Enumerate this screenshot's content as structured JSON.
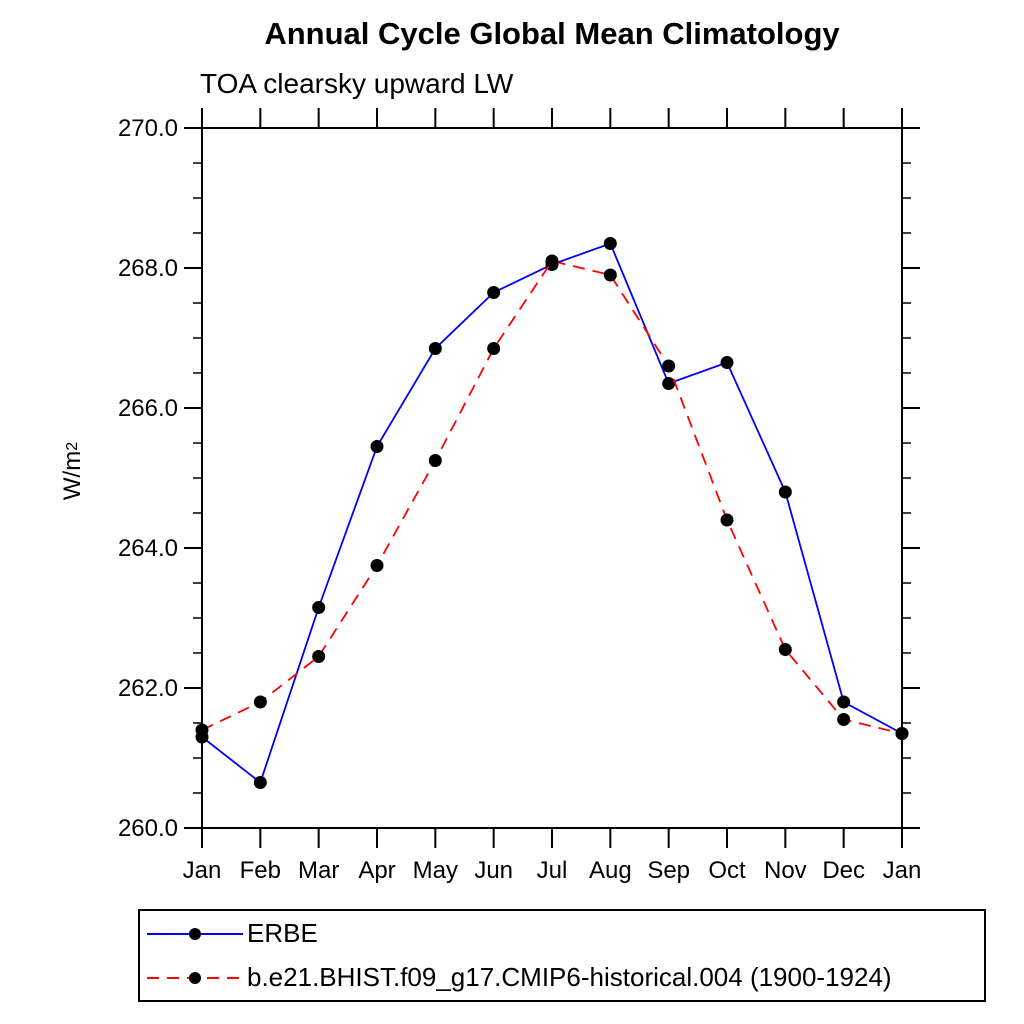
{
  "chart_data": {
    "type": "line",
    "title": "Annual Cycle Global Mean Climatology",
    "subtitle": "TOA clearsky upward LW",
    "ylabel": "W/m2",
    "ylabel_base": "W/m",
    "ylabel_sup": "2",
    "categories": [
      "Jan",
      "Feb",
      "Mar",
      "Apr",
      "May",
      "Jun",
      "Jul",
      "Aug",
      "Sep",
      "Oct",
      "Nov",
      "Dec",
      "Jan"
    ],
    "ylim": [
      260.0,
      270.0
    ],
    "y_major_ticks": [
      {
        "value": 270.0,
        "label": "270.0"
      },
      {
        "value": 268.0,
        "label": "268.0"
      },
      {
        "value": 266.0,
        "label": "266.0"
      },
      {
        "value": 264.0,
        "label": "264.0"
      },
      {
        "value": 262.0,
        "label": "262.0"
      },
      {
        "value": 260.0,
        "label": "260.0"
      }
    ],
    "y_minor_step": 0.5,
    "grid": false,
    "legend_position": "bottom",
    "axis_color": "#000000",
    "marker_color": "#000000",
    "marker_radius": 6.5,
    "series": [
      {
        "name": "ERBE",
        "color": "#0000ff",
        "style": "solid",
        "values": [
          261.3,
          260.65,
          263.15,
          265.45,
          266.85,
          267.65,
          268.05,
          268.35,
          266.35,
          266.65,
          264.8,
          261.8,
          261.35
        ]
      },
      {
        "name": "b.e21.BHIST.f09_g17.CMIP6-historical.004 (1900-1924)",
        "color": "#ff0000",
        "style": "dashed",
        "values": [
          261.4,
          261.8,
          262.45,
          263.75,
          265.25,
          266.85,
          268.1,
          267.9,
          266.6,
          264.4,
          262.55,
          261.55,
          261.35
        ]
      }
    ]
  }
}
